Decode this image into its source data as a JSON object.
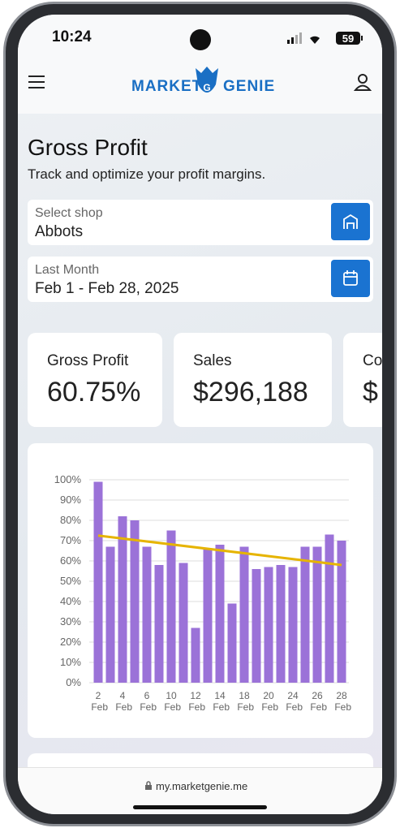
{
  "status": {
    "time": "10:24",
    "battery": "59"
  },
  "header": {
    "brand_left": "MARKET",
    "brand_right": "GENIE"
  },
  "page": {
    "title": "Gross Profit",
    "subtitle": "Track and optimize your profit margins."
  },
  "filters": [
    {
      "label": "Select shop",
      "value": "Abbots"
    },
    {
      "label": "Last Month",
      "value": "Feb 1 - Feb 28, 2025"
    }
  ],
  "kpis": [
    {
      "label": "Gross Profit",
      "value": "60.75%"
    },
    {
      "label": "Sales",
      "value": "$296,188"
    },
    {
      "label": "Cos",
      "value": "$"
    }
  ],
  "chart_data": {
    "type": "bar",
    "categories": [
      "2 Feb",
      null,
      "4 Feb",
      null,
      "6 Feb",
      null,
      "10 Feb",
      null,
      "12 Feb",
      null,
      "14 Feb",
      null,
      "18 Feb",
      null,
      "20 Feb",
      null,
      "24 Feb",
      null,
      "26 Feb",
      null,
      "28 Feb"
    ],
    "values": [
      99,
      67,
      82,
      80,
      67,
      58,
      75,
      59,
      27,
      66,
      68,
      39,
      67,
      56,
      57,
      58,
      57,
      67,
      67,
      73,
      70
    ],
    "color": "#9b72d8",
    "trendline": {
      "values": [
        72.5,
        58
      ],
      "color": "#e6b400"
    },
    "ylim": [
      0,
      100
    ],
    "yticks": [
      {
        "value": 0,
        "label": "0%"
      },
      {
        "value": 10,
        "label": "10%"
      },
      {
        "value": 20,
        "label": "20%"
      },
      {
        "value": 30,
        "label": "30%"
      },
      {
        "value": 40,
        "label": "40%"
      },
      {
        "value": 50,
        "label": "50%"
      },
      {
        "value": 60,
        "label": "60%"
      },
      {
        "value": 70,
        "label": "70%"
      },
      {
        "value": 80,
        "label": "80%"
      },
      {
        "value": 90,
        "label": "90%"
      },
      {
        "value": 100,
        "label": "100%"
      }
    ],
    "grid": true
  },
  "url": "my.marketgenie.me"
}
